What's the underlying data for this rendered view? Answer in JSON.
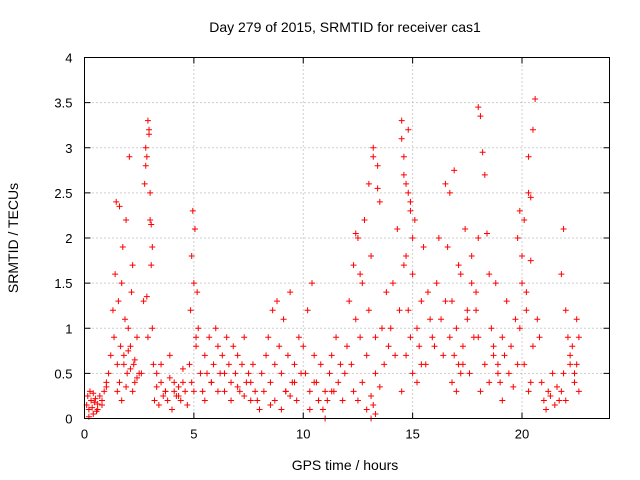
{
  "chart_data": {
    "type": "scatter",
    "title": "Day 279 of 2015, SRMTID for receiver cas1",
    "xlabel": "GPS time / hours",
    "ylabel": "SRMTID / TECUs",
    "xlim": [
      0,
      24
    ],
    "ylim": [
      0,
      4
    ],
    "xticks": [
      0,
      5,
      10,
      15,
      20
    ],
    "xtick_labels": [
      "0",
      "5",
      "10",
      "15",
      "20"
    ],
    "yticks": [
      0,
      0.5,
      1,
      1.5,
      2,
      2.5,
      3,
      3.5,
      4
    ],
    "ytick_labels": [
      "0",
      "0.5",
      "1",
      "1.5",
      "2",
      "2.5",
      "3",
      "3.5",
      "4"
    ],
    "grid": true,
    "marker": "+",
    "color": "#ff0000",
    "series": [
      {
        "name": "SRMTID",
        "x": [
          0.1,
          0.15,
          0.2,
          0.25,
          0.3,
          0.35,
          0.4,
          0.45,
          0.5,
          0.55,
          0.6,
          0.7,
          0.8,
          0.9,
          1.0,
          0.2,
          0.4,
          0.6,
          0.8,
          1.0,
          1.1,
          1.2,
          1.3,
          1.35,
          1.4,
          1.45,
          1.5,
          1.55,
          1.6,
          1.65,
          1.7,
          1.75,
          1.8,
          1.85,
          1.9,
          1.95,
          2.0,
          2.05,
          2.1,
          2.15,
          2.2,
          2.25,
          2.3,
          2.4,
          2.5,
          1.5,
          1.6,
          1.7,
          1.8,
          1.9,
          2.0,
          2.1,
          2.2,
          2.3,
          2.4,
          2.6,
          2.7,
          2.75,
          2.8,
          2.85,
          2.9,
          2.95,
          3.0,
          3.05,
          3.1,
          3.15,
          2.8,
          2.85,
          2.9,
          2.95,
          3.0,
          3.05,
          3.1,
          3.2,
          3.3,
          3.4,
          3.5,
          3.6,
          3.7,
          3.8,
          3.9,
          4.0,
          4.1,
          4.2,
          4.3,
          4.4,
          4.5,
          4.6,
          4.7,
          3.3,
          3.5,
          3.7,
          3.9,
          4.1,
          4.3,
          4.5,
          4.8,
          4.85,
          4.9,
          4.95,
          5.0,
          5.05,
          5.1,
          5.15,
          4.9,
          5.0,
          5.1,
          5.2,
          5.3,
          5.4,
          5.5,
          5.6,
          5.7,
          5.8,
          5.9,
          6.0,
          6.1,
          6.2,
          6.3,
          6.4,
          6.5,
          6.6,
          6.7,
          6.8,
          6.9,
          7.0,
          7.1,
          7.2,
          7.3,
          7.4,
          7.5,
          7.6,
          7.7,
          5.5,
          5.8,
          6.1,
          6.4,
          6.7,
          7.0,
          7.3,
          7.6,
          7.8,
          7.9,
          8.0,
          8.1,
          8.2,
          8.3,
          8.4,
          8.5,
          8.6,
          8.7,
          8.8,
          8.9,
          9.0,
          9.1,
          9.2,
          9.3,
          9.4,
          9.5,
          9.6,
          9.7,
          9.8,
          9.9,
          8.5,
          8.7,
          9.0,
          9.2,
          9.4,
          9.6,
          10.0,
          10.1,
          10.2,
          10.3,
          10.4,
          10.5,
          10.6,
          10.7,
          10.8,
          10.9,
          11.0,
          11.1,
          11.2,
          11.3,
          11.4,
          11.5,
          11.6,
          11.7,
          11.8,
          11.9,
          10.3,
          10.5,
          10.7,
          11.0,
          11.3,
          12.0,
          12.1,
          12.2,
          12.3,
          12.4,
          12.5,
          12.6,
          12.7,
          12.8,
          12.9,
          13.0,
          13.1,
          13.2,
          13.3,
          13.4,
          13.5,
          13.6,
          13.7,
          13.8,
          13.9,
          12.3,
          12.5,
          12.7,
          12.9,
          13.1,
          13.3,
          13.5,
          12.4,
          12.6,
          13.0,
          13.2,
          13.4,
          13.1,
          13.2,
          13.3,
          14.0,
          14.1,
          14.2,
          14.3,
          14.4,
          14.5,
          14.6,
          14.7,
          14.8,
          14.9,
          15.0,
          15.1,
          15.2,
          15.3,
          15.4,
          15.5,
          15.6,
          15.7,
          15.8,
          15.9,
          14.5,
          14.6,
          14.7,
          14.8,
          14.9,
          15.0,
          14.6,
          14.8,
          15.0,
          15.2,
          15.4,
          14.5,
          14.7,
          14.9,
          16.0,
          16.1,
          16.2,
          16.3,
          16.4,
          16.5,
          16.6,
          16.7,
          16.8,
          16.9,
          17.0,
          17.1,
          17.2,
          17.3,
          17.4,
          17.5,
          17.6,
          17.7,
          17.8,
          17.9,
          16.5,
          16.7,
          16.9,
          17.1,
          17.3,
          17.5,
          17.7,
          16.8,
          17.0,
          17.2,
          18.0,
          18.1,
          18.2,
          18.3,
          18.4,
          18.5,
          18.6,
          18.7,
          18.8,
          18.9,
          19.0,
          19.1,
          19.2,
          19.3,
          19.4,
          19.5,
          19.6,
          19.7,
          19.8,
          19.9,
          17.9,
          18.0,
          18.0,
          18.1,
          18.3,
          18.5,
          18.7,
          18.9,
          19.1,
          20.0,
          20.1,
          20.2,
          20.3,
          20.4,
          20.5,
          20.6,
          20.7,
          20.8,
          19.8,
          19.9,
          20.0,
          20.1,
          20.2,
          20.3,
          20.4,
          20.5,
          20.3,
          20.4,
          20.9,
          21.0,
          21.1,
          21.2,
          21.3,
          21.4,
          21.5,
          21.6,
          21.7,
          21.8,
          21.9,
          22.0,
          22.1,
          22.2,
          22.3,
          22.4,
          22.5,
          21.8,
          21.9,
          22.0,
          22.2,
          22.4,
          22.5,
          22.6,
          22.6
        ],
        "y": [
          0.15,
          0.25,
          0.1,
          0.3,
          0.2,
          0.12,
          0.28,
          0.18,
          0.22,
          0.08,
          0.16,
          0.25,
          0.2,
          0.3,
          0.35,
          0.02,
          0.05,
          0.1,
          0.15,
          0.4,
          0.5,
          0.7,
          1.2,
          0.9,
          1.6,
          2.4,
          0.6,
          1.3,
          2.35,
          0.8,
          1.5,
          1.9,
          0.7,
          1.1,
          2.2,
          0.5,
          1.0,
          2.9,
          0.8,
          1.4,
          1.7,
          0.6,
          0.4,
          0.9,
          0.5,
          0.3,
          0.4,
          0.2,
          0.6,
          0.35,
          0.75,
          0.55,
          0.3,
          0.65,
          0.45,
          0.5,
          1.3,
          2.6,
          3.0,
          2.9,
          3.3,
          3.15,
          2.2,
          1.7,
          1.9,
          0.6,
          2.8,
          1.35,
          0.9,
          3.2,
          2.5,
          2.15,
          1.0,
          0.2,
          0.35,
          0.15,
          0.4,
          0.25,
          0.3,
          0.2,
          0.45,
          0.1,
          0.3,
          0.25,
          0.35,
          0.2,
          0.4,
          0.3,
          0.15,
          0.5,
          0.6,
          0.3,
          0.7,
          0.4,
          0.25,
          0.55,
          0.6,
          1.2,
          1.8,
          2.3,
          1.5,
          2.1,
          0.9,
          1.4,
          0.4,
          0.3,
          0.8,
          1.0,
          0.5,
          0.3,
          0.7,
          0.5,
          0.9,
          0.4,
          0.6,
          1.0,
          0.8,
          0.5,
          0.7,
          0.3,
          0.9,
          0.6,
          0.4,
          0.8,
          0.5,
          0.7,
          0.3,
          0.6,
          0.9,
          0.4,
          0.5,
          0.2,
          0.6,
          0.2,
          0.4,
          0.3,
          0.5,
          0.2,
          0.35,
          0.25,
          0.4,
          0.3,
          0.2,
          0.1,
          0.5,
          0.3,
          0.7,
          0.9,
          0.4,
          1.2,
          0.6,
          1.3,
          0.8,
          0.5,
          1.1,
          0.3,
          0.7,
          1.4,
          0.4,
          0.6,
          0.2,
          0.9,
          0.5,
          0.15,
          0.2,
          0.1,
          0.3,
          0.25,
          0.4,
          0.8,
          0.5,
          1.2,
          0.3,
          1.5,
          0.7,
          0.4,
          0.2,
          0.6,
          0.1,
          0.3,
          0.2,
          0.5,
          0.7,
          0.3,
          0.9,
          0.4,
          0.6,
          0.2,
          0.5,
          0.1,
          0.4,
          0.2,
          0.0,
          0.3,
          0.8,
          1.3,
          0.6,
          1.7,
          1.1,
          2.0,
          0.9,
          1.5,
          2.2,
          0.7,
          1.2,
          1.8,
          3.0,
          0.9,
          2.8,
          2.4,
          1.0,
          0.6,
          1.4,
          0.8,
          0.3,
          0.2,
          0.4,
          0.1,
          0.25,
          0.5,
          0.35,
          2.05,
          1.6,
          2.6,
          2.9,
          2.55,
          0.0,
          0.15,
          0.05,
          1.0,
          1.5,
          0.7,
          2.1,
          1.2,
          3.3,
          2.7,
          1.8,
          3.2,
          2.4,
          1.6,
          2.2,
          1.0,
          0.8,
          1.3,
          1.9,
          0.6,
          1.4,
          1.1,
          0.9,
          3.1,
          2.9,
          2.6,
          2.5,
          2.3,
          2.0,
          1.7,
          1.2,
          0.5,
          0.4,
          0.6,
          0.3,
          0.7,
          0.9,
          0.8,
          1.5,
          2.0,
          1.1,
          0.7,
          2.6,
          1.9,
          2.5,
          1.3,
          2.75,
          1.0,
          0.6,
          1.6,
          0.8,
          2.1,
          1.2,
          0.5,
          1.8,
          0.9,
          1.4,
          1.3,
          0.9,
          0.7,
          1.7,
          0.6,
          1.1,
          1.5,
          0.4,
          0.3,
          0.5,
          3.45,
          3.35,
          2.95,
          2.7,
          2.05,
          1.6,
          1.0,
          0.8,
          1.5,
          0.6,
          0.4,
          0.9,
          0.7,
          1.3,
          0.5,
          0.8,
          0.35,
          1.1,
          0.6,
          2.3,
          1.2,
          2.0,
          0.9,
          0.3,
          0.6,
          0.4,
          0.7,
          0.5,
          0.2,
          1.8,
          2.2,
          1.4,
          2.9,
          2.45,
          3.2,
          3.54,
          1.1,
          0.9,
          2.0,
          1.0,
          1.5,
          0.6,
          1.2,
          2.5,
          0.4,
          0.8,
          0.3,
          1.75,
          0.4,
          0.2,
          0.1,
          0.3,
          0.25,
          0.5,
          0.15,
          0.35,
          0.2,
          1.6,
          2.1,
          1.2,
          0.9,
          0.6,
          0.8,
          0.5,
          1.1,
          0.3,
          0.5,
          0.2,
          0.7,
          0.4,
          0.6,
          0.3,
          0.9
        ]
      }
    ]
  }
}
